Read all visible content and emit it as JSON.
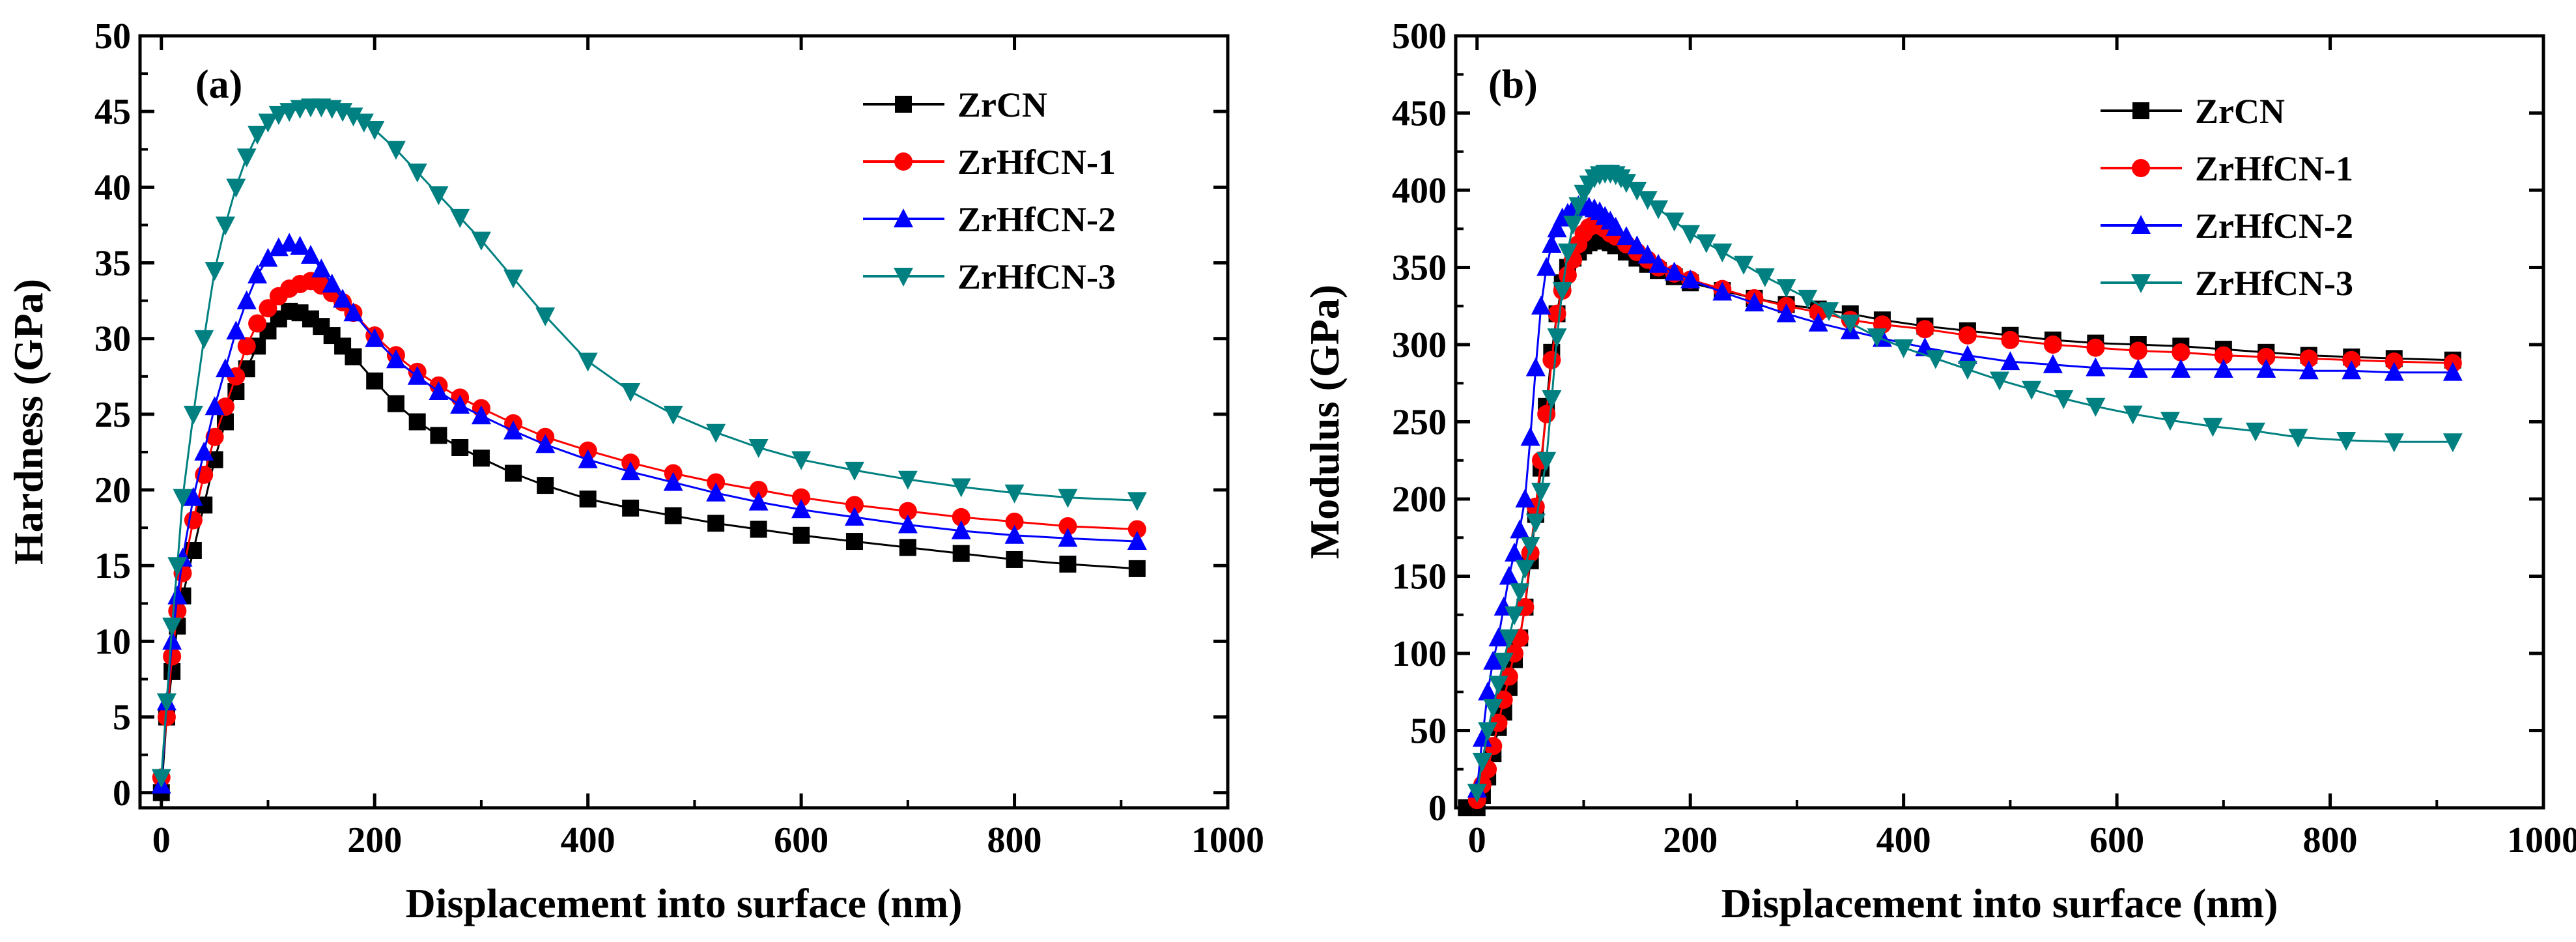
{
  "chart_data": [
    {
      "type": "line",
      "panel_label": "(a)",
      "xlabel": "Displacement into surface (nm)",
      "ylabel": "Hardness (GPa)",
      "xlim": [
        -20,
        1000
      ],
      "ylim": [
        -1,
        50
      ],
      "xticks": [
        0,
        200,
        400,
        600,
        800,
        1000
      ],
      "yticks": [
        0,
        5,
        10,
        15,
        20,
        25,
        30,
        35,
        40,
        45,
        50
      ],
      "legend_position": "top-right",
      "series": [
        {
          "name": "ZrCN",
          "color": "#000000",
          "marker": "square",
          "x": [
            0,
            5,
            10,
            15,
            20,
            30,
            40,
            50,
            60,
            70,
            80,
            90,
            100,
            110,
            120,
            130,
            140,
            150,
            160,
            170,
            180,
            200,
            220,
            240,
            260,
            280,
            300,
            330,
            360,
            400,
            440,
            480,
            520,
            560,
            600,
            650,
            700,
            750,
            800,
            850,
            915
          ],
          "y": [
            0,
            5,
            8,
            11,
            13,
            16,
            19,
            22,
            24.5,
            26.5,
            28,
            29.5,
            30.5,
            31.3,
            31.8,
            31.7,
            31.3,
            30.8,
            30.2,
            29.5,
            28.8,
            27.2,
            25.7,
            24.5,
            23.6,
            22.8,
            22.1,
            21.1,
            20.3,
            19.4,
            18.8,
            18.3,
            17.8,
            17.4,
            17.0,
            16.6,
            16.2,
            15.8,
            15.4,
            15.1,
            14.8
          ]
        },
        {
          "name": "ZrHfCN-1",
          "color": "#ff0000",
          "marker": "circle",
          "x": [
            0,
            5,
            10,
            15,
            20,
            30,
            40,
            50,
            60,
            70,
            80,
            90,
            100,
            110,
            120,
            130,
            140,
            150,
            160,
            170,
            180,
            200,
            220,
            240,
            260,
            280,
            300,
            330,
            360,
            400,
            440,
            480,
            520,
            560,
            600,
            650,
            700,
            750,
            800,
            850,
            915
          ],
          "y": [
            1,
            5,
            9,
            12,
            14.5,
            18,
            21,
            23.5,
            25.5,
            27.5,
            29.5,
            31,
            32,
            32.8,
            33.3,
            33.6,
            33.8,
            33.5,
            33,
            32.4,
            31.7,
            30.2,
            28.9,
            27.8,
            26.9,
            26.1,
            25.4,
            24.4,
            23.5,
            22.6,
            21.8,
            21.1,
            20.5,
            20.0,
            19.5,
            19.0,
            18.6,
            18.2,
            17.9,
            17.6,
            17.4
          ]
        },
        {
          "name": "ZrHfCN-2",
          "color": "#0000ff",
          "marker": "triangle-up",
          "x": [
            0,
            5,
            10,
            15,
            20,
            30,
            40,
            50,
            60,
            70,
            80,
            90,
            100,
            110,
            120,
            130,
            140,
            150,
            160,
            170,
            180,
            200,
            220,
            240,
            260,
            280,
            300,
            330,
            360,
            400,
            440,
            480,
            520,
            560,
            600,
            650,
            700,
            750,
            800,
            850,
            915
          ],
          "y": [
            0.5,
            6,
            10,
            13,
            15.5,
            19.5,
            22.5,
            25.5,
            28,
            30.5,
            32.5,
            34.2,
            35.3,
            36,
            36.3,
            36.1,
            35.5,
            34.6,
            33.6,
            32.6,
            31.7,
            30.0,
            28.6,
            27.5,
            26.5,
            25.6,
            24.9,
            23.9,
            23.0,
            22.0,
            21.2,
            20.5,
            19.8,
            19.2,
            18.7,
            18.2,
            17.7,
            17.3,
            17.0,
            16.8,
            16.6
          ]
        },
        {
          "name": "ZrHfCN-3",
          "color": "#008080",
          "marker": "triangle-down",
          "x": [
            0,
            5,
            10,
            15,
            20,
            30,
            40,
            50,
            60,
            70,
            80,
            90,
            100,
            110,
            120,
            130,
            140,
            150,
            160,
            170,
            180,
            190,
            200,
            220,
            240,
            260,
            280,
            300,
            330,
            360,
            400,
            440,
            480,
            520,
            560,
            600,
            650,
            700,
            750,
            800,
            850,
            915
          ],
          "y": [
            1,
            6,
            11,
            15,
            19.5,
            25,
            30,
            34.5,
            37.5,
            40,
            42,
            43.5,
            44.3,
            44.8,
            45.0,
            45.2,
            45.3,
            45.3,
            45.2,
            45.0,
            44.7,
            44.3,
            43.8,
            42.5,
            41,
            39.5,
            38,
            36.5,
            34,
            31.5,
            28.5,
            26.5,
            25,
            23.8,
            22.8,
            22.0,
            21.3,
            20.7,
            20.2,
            19.8,
            19.5,
            19.3
          ]
        }
      ]
    },
    {
      "type": "line",
      "panel_label": "(b)",
      "xlabel": "Displacement into surface (nm)",
      "ylabel": "Modulus (GPa)",
      "xlim": [
        -20,
        1000
      ],
      "ylim": [
        0,
        500
      ],
      "xticks": [
        0,
        200,
        400,
        600,
        800,
        1000
      ],
      "yticks": [
        0,
        50,
        100,
        150,
        200,
        250,
        300,
        350,
        400,
        450,
        500
      ],
      "legend_position": "top-right",
      "series": [
        {
          "name": "ZrCN",
          "color": "#000000",
          "marker": "square",
          "x": [
            -10,
            -5,
            0,
            5,
            10,
            15,
            20,
            25,
            30,
            35,
            40,
            45,
            50,
            55,
            60,
            65,
            70,
            75,
            80,
            85,
            90,
            95,
            100,
            105,
            110,
            115,
            120,
            125,
            130,
            140,
            150,
            160,
            170,
            185,
            200,
            230,
            260,
            290,
            320,
            350,
            380,
            420,
            460,
            500,
            540,
            580,
            620,
            660,
            700,
            740,
            780,
            820,
            860,
            915
          ],
          "y": [
            0,
            0,
            0,
            8,
            20,
            35,
            52,
            62,
            78,
            96,
            110,
            130,
            160,
            190,
            220,
            260,
            295,
            320,
            340,
            350,
            356,
            360,
            364,
            366,
            368,
            368,
            367,
            366,
            364,
            360,
            356,
            352,
            348,
            344,
            340,
            335,
            330,
            326,
            323,
            320,
            316,
            312,
            309,
            306,
            303,
            301,
            300,
            299,
            297,
            295,
            293,
            292,
            291,
            290
          ]
        },
        {
          "name": "ZrHfCN-1",
          "color": "#ff0000",
          "marker": "circle",
          "x": [
            0,
            5,
            10,
            15,
            20,
            25,
            30,
            35,
            40,
            45,
            50,
            55,
            60,
            65,
            70,
            75,
            80,
            85,
            90,
            95,
            100,
            105,
            110,
            115,
            120,
            125,
            130,
            140,
            150,
            160,
            170,
            185,
            200,
            230,
            260,
            290,
            320,
            350,
            380,
            420,
            460,
            500,
            540,
            580,
            620,
            660,
            700,
            740,
            780,
            820,
            860,
            915
          ],
          "y": [
            5,
            15,
            25,
            40,
            55,
            70,
            85,
            100,
            110,
            130,
            165,
            195,
            225,
            255,
            290,
            320,
            335,
            345,
            355,
            365,
            372,
            376,
            378,
            377,
            375,
            372,
            370,
            365,
            360,
            355,
            350,
            346,
            342,
            336,
            330,
            325,
            321,
            316,
            313,
            310,
            306,
            303,
            300,
            298,
            296,
            295,
            293,
            292,
            291,
            290,
            289,
            288
          ]
        },
        {
          "name": "ZrHfCN-2",
          "color": "#0000ff",
          "marker": "triangle-up",
          "x": [
            0,
            5,
            10,
            15,
            20,
            25,
            30,
            35,
            40,
            45,
            50,
            55,
            60,
            65,
            70,
            75,
            80,
            85,
            90,
            95,
            100,
            105,
            110,
            115,
            120,
            125,
            130,
            140,
            150,
            160,
            170,
            185,
            200,
            230,
            260,
            290,
            320,
            350,
            380,
            420,
            460,
            500,
            540,
            580,
            620,
            660,
            700,
            740,
            780,
            820,
            860,
            915
          ],
          "y": [
            12,
            45,
            75,
            95,
            110,
            130,
            150,
            165,
            180,
            200,
            240,
            285,
            325,
            350,
            365,
            375,
            382,
            385,
            388,
            390,
            390,
            389,
            388,
            386,
            383,
            380,
            376,
            370,
            364,
            358,
            352,
            347,
            342,
            334,
            327,
            320,
            314,
            309,
            304,
            298,
            293,
            289,
            287,
            285,
            284,
            284,
            284,
            284,
            283,
            283,
            282,
            282
          ]
        },
        {
          "name": "ZrHfCN-3",
          "color": "#008080",
          "marker": "triangle-down",
          "x": [
            0,
            5,
            10,
            15,
            20,
            25,
            30,
            35,
            40,
            45,
            50,
            55,
            60,
            65,
            70,
            75,
            80,
            85,
            90,
            95,
            100,
            105,
            110,
            115,
            120,
            125,
            130,
            135,
            140,
            150,
            160,
            170,
            185,
            200,
            215,
            230,
            250,
            270,
            290,
            310,
            330,
            350,
            375,
            400,
            430,
            460,
            490,
            520,
            550,
            580,
            615,
            650,
            690,
            730,
            770,
            815,
            860,
            915
          ],
          "y": [
            10,
            30,
            50,
            65,
            80,
            95,
            110,
            125,
            140,
            155,
            170,
            185,
            205,
            225,
            265,
            305,
            335,
            360,
            378,
            390,
            398,
            404,
            408,
            410,
            411,
            411,
            410,
            408,
            405,
            400,
            394,
            388,
            380,
            372,
            366,
            360,
            352,
            344,
            337,
            330,
            322,
            314,
            305,
            298,
            291,
            284,
            277,
            271,
            265,
            260,
            255,
            251,
            247,
            244,
            240,
            238,
            237,
            237
          ]
        }
      ]
    }
  ]
}
